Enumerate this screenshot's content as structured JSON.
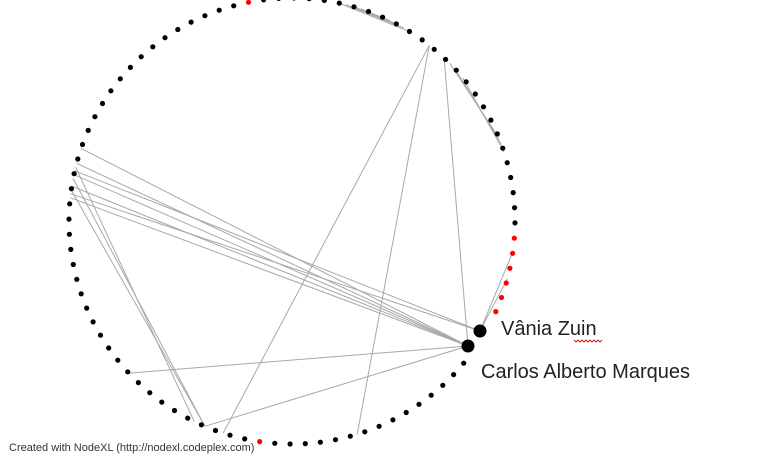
{
  "graph": {
    "layout": "circle",
    "node_count": 92,
    "colors": {
      "node": "#000000",
      "highlight_node": "#ff0000",
      "edge": "#a8a8a8",
      "background": "#ffffff"
    },
    "labels": {
      "vania": "Vânia Zuin",
      "carlos": "Carlos Alberto Marques"
    }
  },
  "footer": {
    "credit": "Created with NodeXL (http://nodexl.codeplex.com)"
  }
}
